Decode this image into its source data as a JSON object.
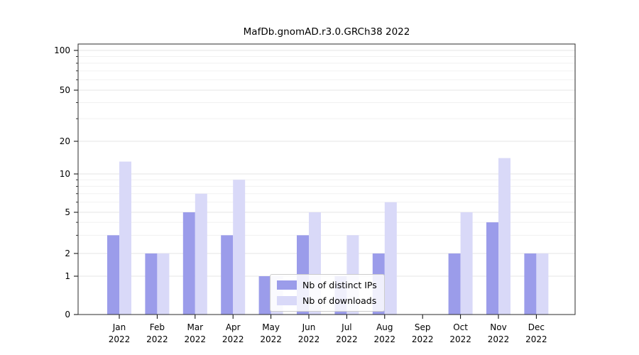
{
  "chart_data": {
    "type": "bar",
    "title": "MafDb.gnomAD.r3.0.GRCh38 2022",
    "categories": [
      "Jan",
      "Feb",
      "Mar",
      "Apr",
      "May",
      "Jun",
      "Jul",
      "Aug",
      "Sep",
      "Oct",
      "Nov",
      "Dec"
    ],
    "year": "2022",
    "series": [
      {
        "name": "Nb of distinct IPs",
        "color": "#9b9cea",
        "values": [
          3,
          2,
          5,
          3,
          1,
          3,
          1,
          2,
          0,
          2,
          4,
          2
        ]
      },
      {
        "name": "Nb of downloads",
        "color": "#d9d9f8",
        "values": [
          13,
          2,
          7,
          9,
          1,
          5,
          3,
          6,
          0,
          5,
          14,
          2
        ]
      }
    ],
    "yscale": "symlog",
    "y_ticks": [
      0,
      1,
      2,
      5,
      10,
      20,
      50,
      100
    ],
    "y_minor_ticks": [
      3,
      4,
      6,
      7,
      8,
      9,
      30,
      40,
      60,
      70,
      80,
      90
    ],
    "ylim": [
      0,
      115
    ],
    "grid": "horizontal",
    "legend_position": "lower-center-inside"
  }
}
